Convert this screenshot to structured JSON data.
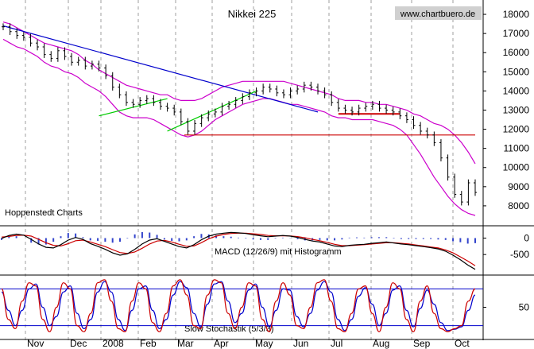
{
  "chart_data": {
    "type": "line",
    "title": "Nikkei 225",
    "watermark": "www.chartbuero.de",
    "provider": "Hoppenstedt Charts",
    "x_labels": [
      "Nov",
      "Dec",
      "2008",
      "Feb",
      "Mar",
      "Apr",
      "May",
      "Jun",
      "Jul",
      "Aug",
      "Sep",
      "Oct"
    ],
    "price_panel": {
      "ylim": [
        7000,
        18500
      ],
      "y_ticks": [
        8000,
        9000,
        10000,
        11000,
        12000,
        13000,
        14000,
        15000,
        16000,
        17000,
        18000
      ],
      "price_series": [
        17350,
        17100,
        16900,
        16800,
        16500,
        16300,
        15900,
        15700,
        16100,
        15800,
        15500,
        15600,
        15300,
        15400,
        15200,
        14800,
        14200,
        13800,
        13400,
        13300,
        13500,
        13600,
        13400,
        13200,
        13100,
        12900,
        12400,
        11900,
        12300,
        12600,
        12800,
        12900,
        13200,
        13300,
        13500,
        13700,
        13900,
        14000,
        14200,
        14100,
        13900,
        13800,
        14000,
        14100,
        14300,
        14200,
        14000,
        13800,
        13400,
        13100,
        13000,
        12900,
        13100,
        13200,
        13300,
        13100,
        13000,
        12900,
        12700,
        12500,
        12200,
        11900,
        11700,
        11300,
        10500,
        9500,
        8600,
        8200,
        9200,
        8700
      ],
      "upper_band": [
        17600,
        17500,
        17300,
        17100,
        16900,
        16700,
        16500,
        16400,
        16300,
        16200,
        16100,
        15900,
        15600,
        15400,
        15100,
        14900,
        14700,
        14500,
        14300,
        14200,
        14100,
        14000,
        13900,
        13800,
        13800,
        13600,
        13500,
        13500,
        13500,
        13600,
        13800,
        14000,
        14200,
        14300,
        14400,
        14500,
        14500,
        14500,
        14500,
        14500,
        14500,
        14500,
        14400,
        14300,
        14200,
        14100,
        14000,
        13900,
        13800,
        13600,
        13500,
        13500,
        13500,
        13400,
        13400,
        13300,
        13300,
        13200,
        13100,
        13000,
        12800,
        12700,
        12500,
        12300,
        12200,
        12000,
        11700,
        11300,
        10800,
        10200
      ],
      "lower_band": [
        16700,
        16500,
        16300,
        16200,
        16000,
        15800,
        15500,
        15300,
        15200,
        15000,
        14900,
        14700,
        14400,
        14200,
        14000,
        13700,
        13300,
        12900,
        12700,
        12600,
        12600,
        12600,
        12500,
        12300,
        12100,
        11900,
        11700,
        11600,
        11700,
        11900,
        12200,
        12500,
        12700,
        12900,
        13100,
        13300,
        13400,
        13500,
        13600,
        13600,
        13500,
        13400,
        13300,
        13300,
        13200,
        13100,
        13000,
        12900,
        12700,
        12600,
        12600,
        12500,
        12500,
        12500,
        12500,
        12400,
        12300,
        12200,
        12000,
        11700,
        11200,
        10700,
        10100,
        9500,
        9000,
        8500,
        8100,
        7800,
        7600,
        7500
      ],
      "downtrend_line": [
        [
          0,
          17400
        ],
        [
          46,
          12900
        ]
      ],
      "uptrend_line_1": [
        [
          14,
          12700
        ],
        [
          24,
          13600
        ]
      ],
      "uptrend_line_2": [
        [
          24,
          11900
        ],
        [
          37,
          14000
        ]
      ],
      "support_line": 11700,
      "resistance_short": [
        [
          49,
          12800
        ],
        [
          58,
          12800
        ]
      ]
    },
    "macd_panel": {
      "label": "MACD (12/26/9) mit Histogramm",
      "y_ticks": [
        0,
        -500
      ],
      "ylim": [
        -1100,
        350
      ],
      "macd": [
        -10,
        80,
        120,
        90,
        -40,
        -180,
        -280,
        -300,
        -200,
        -60,
        20,
        -40,
        -170,
        -250,
        -340,
        -450,
        -520,
        -480,
        -340,
        -180,
        -60,
        -20,
        -100,
        -180,
        -260,
        -300,
        -200,
        -50,
        60,
        120,
        150,
        170,
        160,
        140,
        100,
        70,
        40,
        60,
        80,
        60,
        20,
        -40,
        -90,
        -120,
        -180,
        -240,
        -260,
        -220,
        -200,
        -190,
        -160,
        -140,
        -120,
        -150,
        -180,
        -200,
        -230,
        -260,
        -290,
        -330,
        -400,
        -520,
        -660,
        -820,
        -950
      ],
      "signal": [
        30,
        50,
        80,
        90,
        60,
        -40,
        -140,
        -220,
        -240,
        -170,
        -80,
        -60,
        -120,
        -190,
        -260,
        -350,
        -440,
        -470,
        -420,
        -310,
        -180,
        -90,
        -70,
        -120,
        -190,
        -250,
        -240,
        -140,
        -20,
        60,
        110,
        140,
        150,
        150,
        130,
        110,
        80,
        70,
        70,
        65,
        45,
        10,
        -40,
        -80,
        -130,
        -190,
        -230,
        -230,
        -215,
        -200,
        -180,
        -160,
        -140,
        -140,
        -160,
        -180,
        -210,
        -240,
        -270,
        -300,
        -360,
        -450,
        -570,
        -700,
        -840
      ]
    },
    "stochastic_panel": {
      "label": "Slow Stochastik (5/3/3)",
      "y_ticks": [
        50
      ],
      "ylim": [
        0,
        100
      ],
      "upper_level": 80,
      "lower_level": 20,
      "k": [
        80,
        30,
        15,
        60,
        90,
        85,
        30,
        10,
        50,
        90,
        80,
        20,
        10,
        40,
        90,
        95,
        60,
        15,
        10,
        60,
        90,
        80,
        25,
        10,
        40,
        85,
        95,
        70,
        20,
        15,
        70,
        95,
        90,
        40,
        15,
        50,
        90,
        85,
        30,
        10,
        60,
        90,
        70,
        20,
        15,
        50,
        90,
        95,
        60,
        15,
        10,
        40,
        80,
        85,
        40,
        10,
        50,
        90,
        80,
        30,
        10,
        60,
        85,
        40,
        15,
        10,
        15,
        20,
        60,
        80
      ],
      "d": [
        75,
        45,
        20,
        45,
        80,
        88,
        50,
        20,
        35,
        75,
        85,
        40,
        15,
        30,
        75,
        92,
        75,
        30,
        12,
        45,
        80,
        85,
        45,
        15,
        30,
        70,
        92,
        82,
        40,
        18,
        55,
        88,
        92,
        60,
        25,
        40,
        78,
        88,
        50,
        18,
        45,
        80,
        78,
        35,
        18,
        40,
        78,
        92,
        75,
        30,
        12,
        30,
        68,
        82,
        55,
        20,
        40,
        78,
        85,
        45,
        18,
        48,
        78,
        55,
        25,
        12,
        14,
        18,
        45,
        70
      ]
    }
  }
}
